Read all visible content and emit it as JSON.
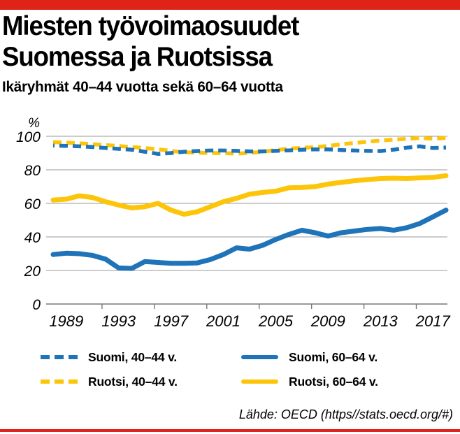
{
  "meta": {
    "red": "#e02318",
    "blue": "#1e73b9",
    "yellow": "#fdc50a",
    "grid_gray": "#9a9a9a",
    "axis_gray": "#787878",
    "text_black": "#000000"
  },
  "header": {
    "title_line1": "Miesten työvoimaosuudet",
    "title_line2": "Suomessa ja Ruotsissa",
    "subtitle": "Ikäryhmät 40–44 vuotta sekä 60–64 vuotta"
  },
  "chart_data": {
    "type": "line",
    "unit_label": "%",
    "x": [
      1988,
      1989,
      1990,
      1991,
      1992,
      1993,
      1994,
      1995,
      1996,
      1997,
      1998,
      1999,
      2000,
      2001,
      2002,
      2003,
      2004,
      2005,
      2006,
      2007,
      2008,
      2009,
      2010,
      2011,
      2012,
      2013,
      2014,
      2015,
      2016,
      2017,
      2018
    ],
    "x_tick_labels": [
      "1989",
      "1993",
      "1997",
      "2001",
      "2005",
      "2009",
      "2013",
      "2017"
    ],
    "x_minor_ticks": [
      1992,
      1996,
      2000,
      2004,
      2008,
      2012,
      2016
    ],
    "ylim": [
      0,
      100
    ],
    "yticks": [
      0,
      20,
      40,
      60,
      80,
      100
    ],
    "grid": "horizontal",
    "legend_position": "below",
    "series": [
      {
        "id": "suomi-40-44",
        "name": "Suomi, 40–44 v.",
        "color": "#1e73b9",
        "style": "dashed",
        "values": [
          94.5,
          94.3,
          94,
          93.6,
          93,
          92.5,
          92,
          90.8,
          89.5,
          90,
          90.8,
          91.2,
          91.5,
          91.5,
          91.3,
          91,
          91,
          91.3,
          91.6,
          92,
          92.2,
          92.2,
          91.8,
          91.5,
          91.3,
          91.2,
          92,
          93.2,
          94,
          93,
          93.3
        ]
      },
      {
        "id": "ruotsi-40-44",
        "name": "Ruotsi, 40–44 v.",
        "color": "#fdc50a",
        "style": "dashed",
        "values": [
          96.5,
          96.2,
          95.8,
          95.3,
          94.8,
          94.2,
          93.6,
          93,
          92.2,
          91.3,
          90.5,
          90.2,
          90,
          89.9,
          89.7,
          90,
          90.8,
          91.8,
          92.6,
          93.1,
          93.5,
          94.3,
          95.2,
          96,
          96.8,
          97.4,
          98,
          98.5,
          99,
          98.6,
          99
        ]
      },
      {
        "id": "suomi-60-64",
        "name": "Suomi, 60–64 v.",
        "color": "#1e73b9",
        "style": "solid",
        "values": [
          29.5,
          30.3,
          30,
          29,
          26.8,
          21.5,
          21.2,
          25.3,
          24.8,
          24.3,
          24.3,
          24.5,
          26.5,
          29.5,
          33.5,
          32.7,
          35,
          38.5,
          41.5,
          44,
          42.5,
          40.5,
          42.5,
          43.5,
          44.5,
          45,
          44,
          45.5,
          48,
          52,
          56
        ]
      },
      {
        "id": "ruotsi-60-64",
        "name": "Ruotsi, 60–64 v.",
        "color": "#fdc50a",
        "style": "solid",
        "values": [
          62,
          62.5,
          64.5,
          63.5,
          61,
          59,
          57.3,
          58,
          60,
          56,
          53.5,
          55,
          58,
          61,
          63,
          65.5,
          66.5,
          67.3,
          69.3,
          69.5,
          70,
          71.5,
          72.5,
          73.5,
          74.2,
          74.8,
          75,
          74.8,
          75.2,
          75.5,
          76.5
        ]
      }
    ]
  },
  "legend": {
    "items": [
      {
        "id": "suomi-40-44",
        "label": "Suomi, 40–44 v.",
        "color": "#1e73b9",
        "style": "dashed"
      },
      {
        "id": "suomi-60-64",
        "label": "Suomi, 60–64 v.",
        "color": "#1e73b9",
        "style": "solid"
      },
      {
        "id": "ruotsi-40-44",
        "label": "Ruotsi, 40–44 v.",
        "color": "#fdc50a",
        "style": "dashed"
      },
      {
        "id": "ruotsi-60-64",
        "label": "Ruotsi, 60–64 v.",
        "color": "#fdc50a",
        "style": "solid"
      }
    ]
  },
  "source": "Lähde: OECD (https//stats.oecd.org/#)"
}
